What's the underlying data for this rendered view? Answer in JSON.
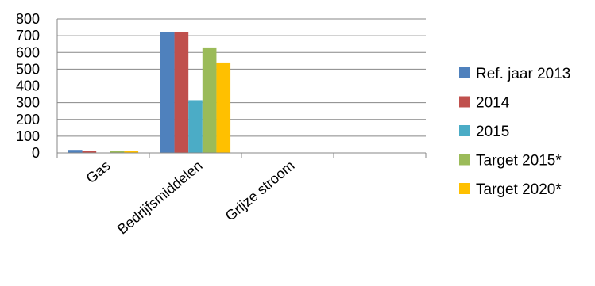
{
  "chart_data": {
    "type": "bar",
    "categories": [
      "Gas",
      "Bedrijfsmiddelen",
      "Grijze stroom",
      ""
    ],
    "series": [
      {
        "name": "Ref. jaar 2013",
        "color": "#4F81BD",
        "values": [
          18,
          722,
          0,
          0
        ]
      },
      {
        "name": "2014",
        "color": "#C0504D",
        "values": [
          14,
          724,
          0,
          0
        ]
      },
      {
        "name": "2015",
        "color": "#4BACC6",
        "values": [
          0,
          315,
          0,
          0
        ]
      },
      {
        "name": "Target 2015*",
        "color": "#9BBB59",
        "values": [
          13,
          630,
          0,
          0
        ]
      },
      {
        "name": "Target 2020*",
        "color": "#FFC000",
        "values": [
          12,
          540,
          0,
          0
        ]
      }
    ],
    "ylim": [
      0,
      800
    ],
    "yticks": [
      "0",
      "100",
      "200",
      "300",
      "400",
      "500",
      "600",
      "700",
      "800"
    ],
    "grid": true,
    "legend_position": "right",
    "title": "",
    "xlabel": "",
    "ylabel": ""
  }
}
